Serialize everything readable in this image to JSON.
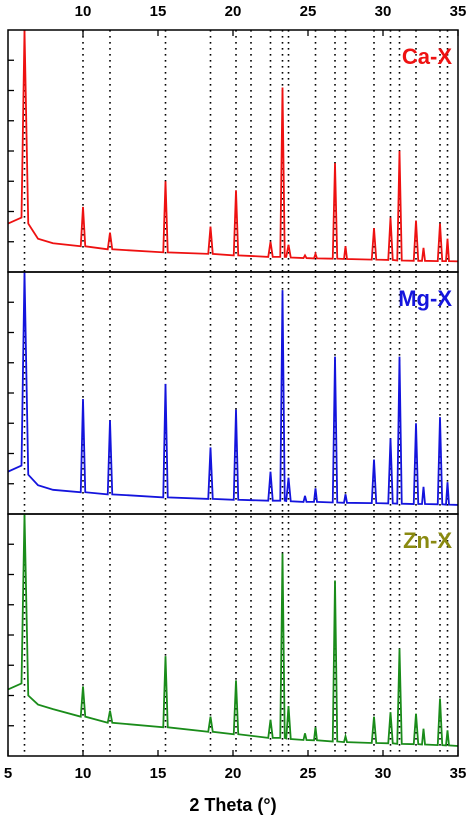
{
  "chart_data": [
    {
      "type": "line",
      "title": "Ca-X",
      "title_color": "#ee1111",
      "xlim": [
        5,
        35
      ],
      "ylim": [
        0,
        8
      ],
      "yticks": [
        1,
        2,
        3,
        4,
        5,
        6,
        7
      ],
      "xticks": [
        10,
        15,
        20,
        25,
        30,
        35
      ],
      "xticks_side": "top",
      "x": [
        5,
        5.9,
        6.1,
        6.35,
        7,
        8,
        9.85,
        10,
        10.15,
        11.65,
        11.8,
        11.95,
        15.35,
        15.5,
        15.65,
        18.35,
        18.5,
        18.65,
        20.05,
        20.2,
        20.35,
        22.35,
        22.5,
        22.65,
        23.15,
        23.3,
        23.45,
        23.55,
        23.7,
        23.85,
        24.7,
        24.8,
        24.9,
        25.4,
        25.5,
        25.6,
        26.65,
        26.8,
        26.95,
        27.4,
        27.5,
        27.6,
        29.25,
        29.4,
        29.55,
        30.35,
        30.5,
        30.65,
        30.95,
        31.1,
        31.25,
        32.05,
        32.2,
        32.35,
        32.6,
        32.7,
        32.8,
        33.65,
        33.8,
        33.95,
        34.2,
        34.3,
        34.4,
        35
      ],
      "series": [
        {
          "name": "Ca-X",
          "color": "#ee1111",
          "values": [
            1.6,
            1.8,
            8,
            1.6,
            1.1,
            0.95,
            0.85,
            2.15,
            0.85,
            0.75,
            1.3,
            0.75,
            0.65,
            3.0,
            0.65,
            0.6,
            1.5,
            0.6,
            0.55,
            2.7,
            0.55,
            0.5,
            1.0,
            0.5,
            0.5,
            6.1,
            0.5,
            0.5,
            0.9,
            0.48,
            0.46,
            0.55,
            0.46,
            0.45,
            0.6,
            0.45,
            0.44,
            3.6,
            0.44,
            0.43,
            0.85,
            0.43,
            0.41,
            1.45,
            0.41,
            0.4,
            1.8,
            0.4,
            0.38,
            4.0,
            0.38,
            0.37,
            1.7,
            0.37,
            0.37,
            0.8,
            0.37,
            0.36,
            1.6,
            0.36,
            0.36,
            1.1,
            0.36,
            0.35
          ]
        }
      ]
    },
    {
      "type": "line",
      "title": "Mg-X",
      "title_color": "#1414dd",
      "xlim": [
        5,
        35
      ],
      "ylim": [
        0,
        8
      ],
      "yticks": [
        1,
        2,
        3,
        4,
        5,
        6,
        7
      ],
      "x": [
        5,
        5.9,
        6.1,
        6.35,
        7,
        8,
        9.85,
        10,
        10.15,
        11.65,
        11.8,
        11.95,
        15.35,
        15.5,
        15.65,
        18.35,
        18.5,
        18.65,
        20.05,
        20.2,
        20.35,
        22.35,
        22.5,
        22.65,
        23.15,
        23.3,
        23.45,
        23.55,
        23.7,
        23.85,
        24.7,
        24.8,
        24.9,
        25.4,
        25.5,
        25.6,
        26.65,
        26.8,
        26.95,
        27.4,
        27.5,
        27.6,
        29.25,
        29.4,
        29.55,
        30.35,
        30.5,
        30.65,
        30.95,
        31.1,
        31.25,
        32.05,
        32.2,
        32.35,
        32.6,
        32.7,
        32.8,
        33.65,
        33.8,
        33.95,
        34.2,
        34.3,
        34.4,
        35
      ],
      "series": [
        {
          "name": "Mg-X",
          "color": "#1414dd",
          "values": [
            1.4,
            1.6,
            8,
            1.3,
            0.95,
            0.8,
            0.72,
            3.8,
            0.72,
            0.65,
            3.1,
            0.65,
            0.55,
            4.3,
            0.55,
            0.5,
            2.2,
            0.5,
            0.47,
            3.45,
            0.47,
            0.44,
            1.4,
            0.44,
            0.44,
            7.4,
            0.44,
            0.43,
            1.2,
            0.42,
            0.4,
            0.6,
            0.4,
            0.4,
            0.85,
            0.4,
            0.38,
            5.2,
            0.38,
            0.37,
            0.65,
            0.37,
            0.36,
            1.8,
            0.36,
            0.35,
            2.5,
            0.35,
            0.34,
            5.2,
            0.34,
            0.33,
            3.0,
            0.33,
            0.33,
            0.9,
            0.33,
            0.32,
            3.2,
            0.32,
            0.31,
            1.05,
            0.31,
            0.3
          ]
        }
      ]
    },
    {
      "type": "line",
      "title": "Zn-X",
      "title_color": "#8a8a10",
      "xlim": [
        5,
        35
      ],
      "ylim": [
        0,
        8
      ],
      "yticks": [
        1,
        2,
        3,
        4,
        5,
        6,
        7
      ],
      "xticks": [
        5,
        10,
        15,
        20,
        25,
        30,
        35
      ],
      "xticks_side": "bottom",
      "xlabel": "2 Theta (°)",
      "x": [
        5,
        5.9,
        6.1,
        6.35,
        7,
        8,
        9.85,
        10,
        10.15,
        11.65,
        11.8,
        11.95,
        15.35,
        15.5,
        15.65,
        18.35,
        18.5,
        18.65,
        20.05,
        20.2,
        20.35,
        22.35,
        22.5,
        22.65,
        23.15,
        23.3,
        23.45,
        23.55,
        23.7,
        23.85,
        24.7,
        24.8,
        24.9,
        25.4,
        25.5,
        25.6,
        26.65,
        26.8,
        26.95,
        27.4,
        27.5,
        27.6,
        29.25,
        29.4,
        29.55,
        30.35,
        30.5,
        30.65,
        30.95,
        31.1,
        31.25,
        32.05,
        32.2,
        32.35,
        32.6,
        32.7,
        32.8,
        33.65,
        33.8,
        33.95,
        34.2,
        34.3,
        34.4,
        35
      ],
      "series": [
        {
          "name": "Zn-X",
          "color": "#1a8c1a",
          "values": [
            2.2,
            2.4,
            8,
            2.0,
            1.7,
            1.55,
            1.3,
            2.3,
            1.3,
            1.1,
            1.5,
            1.1,
            0.95,
            3.3,
            0.95,
            0.8,
            1.3,
            0.8,
            0.72,
            2.5,
            0.72,
            0.6,
            1.2,
            0.6,
            0.6,
            6.7,
            0.6,
            0.58,
            1.65,
            0.56,
            0.53,
            0.75,
            0.53,
            0.52,
            0.95,
            0.52,
            0.48,
            5.8,
            0.48,
            0.46,
            0.65,
            0.46,
            0.43,
            1.3,
            0.43,
            0.42,
            1.45,
            0.42,
            0.4,
            3.55,
            0.4,
            0.39,
            1.4,
            0.39,
            0.38,
            0.9,
            0.38,
            0.36,
            1.9,
            0.36,
            0.35,
            0.85,
            0.35,
            0.33
          ]
        }
      ]
    }
  ],
  "reference_lines": [
    6.1,
    10,
    11.8,
    15.5,
    18.5,
    20.2,
    21.2,
    22.5,
    23.3,
    23.7,
    25.5,
    26.8,
    27.5,
    29.4,
    30.5,
    31.1,
    32.2,
    33.8,
    34.3
  ]
}
